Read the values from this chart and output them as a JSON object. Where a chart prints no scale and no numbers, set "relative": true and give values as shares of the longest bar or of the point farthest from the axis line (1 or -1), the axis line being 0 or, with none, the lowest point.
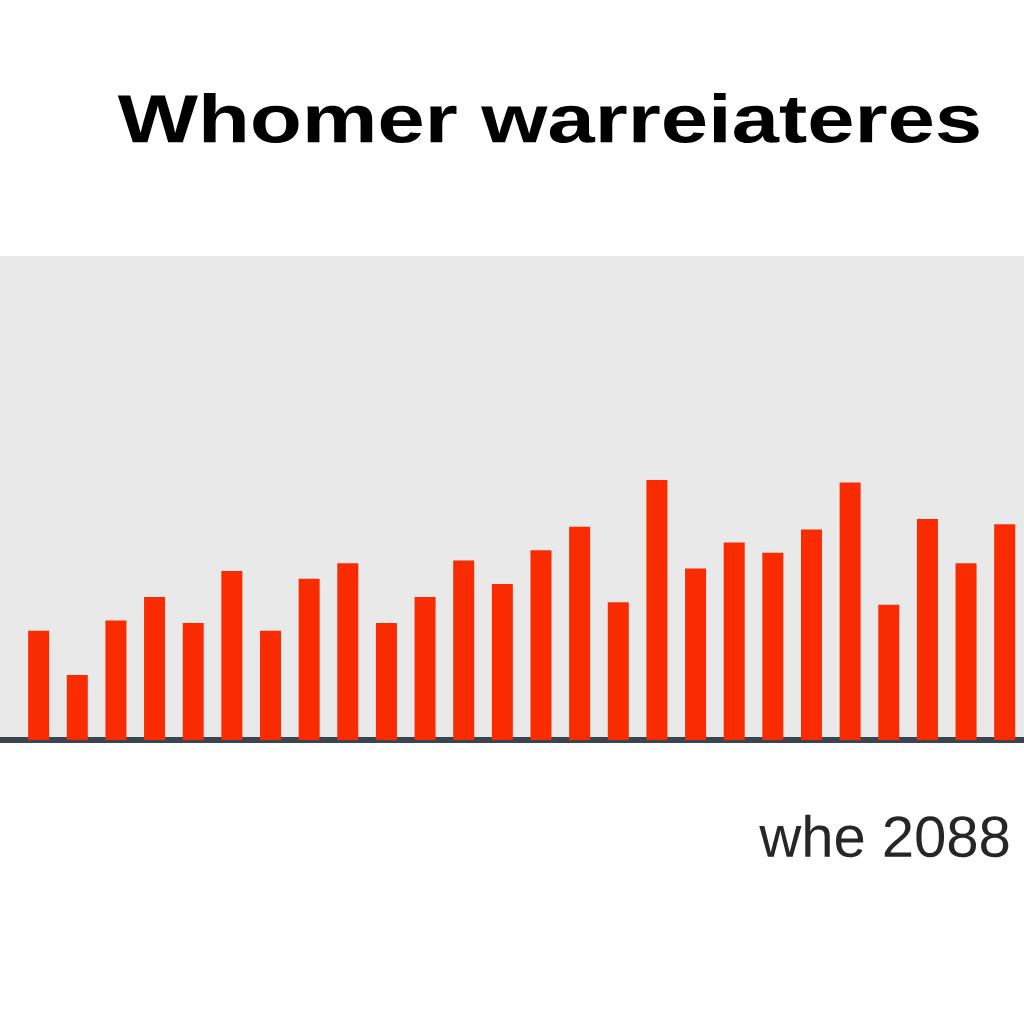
{
  "chart_data": {
    "type": "bar",
    "title": "Whomer warreiateres",
    "annotations": [
      "whe 2088"
    ],
    "categories": [
      null,
      null,
      null,
      null,
      null,
      null,
      null,
      null,
      null,
      null,
      null,
      null,
      null,
      null,
      null,
      null,
      null,
      null,
      null,
      null,
      null,
      null,
      null,
      null,
      null,
      null
    ],
    "values": [
      0.42,
      0.25,
      0.46,
      0.55,
      0.45,
      0.65,
      0.42,
      0.62,
      0.68,
      0.45,
      0.55,
      0.69,
      0.6,
      0.73,
      0.82,
      0.53,
      1,
      0.66,
      0.76,
      0.72,
      0.81,
      0.99,
      0.52,
      0.85,
      0.68,
      0.83
    ],
    "color": "#f82c00",
    "relative": true
  }
}
